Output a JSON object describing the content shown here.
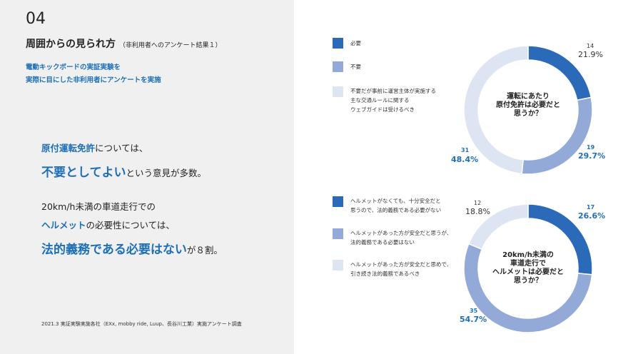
{
  "slide": {
    "number": "04",
    "title": "周囲からの見られ方",
    "title_sub": "（非利用者へのアンケート結果１）",
    "desc_line1": "電動キックボードの実証実験を",
    "desc_line2": "実際に目にした非利用者にアンケートを実施",
    "msg1_a": "原付運転免許",
    "msg1_b": "については、",
    "msg2_a": "不要としてよい",
    "msg2_b": "という意見が多数。",
    "msg3": "20km/h未満の車道走行での",
    "msg4_a": "ヘルメット",
    "msg4_b": "の必要性については、",
    "msg5_a": "法的義務である必要はない",
    "msg5_b": "が８割。",
    "footnote": "2021.3 実証実験実施各社（EXx, mobby ride, Luup、長谷川工業）実施アンケート調査"
  },
  "colors": {
    "dark": "#2a6ab8",
    "mid": "#93a9d8",
    "light": "#dde5f3",
    "accent": "#1e6fb8"
  },
  "chart_data": [
    {
      "type": "pie",
      "donut": true,
      "center_text": [
        "運転にあたり",
        "原付免許は必要だと",
        "思うか？"
      ],
      "legend_position": "left",
      "slices": [
        {
          "label": "必要",
          "count": "14",
          "percent": "21.9%",
          "value": 14
        },
        {
          "label": "不要",
          "count": "19",
          "percent": "29.7%",
          "value": 19
        },
        {
          "label": "不要だが事前に運営主体が実施する主な交通ルールに関するウェブガイドは受けるべき",
          "label_lines": [
            "不要だが事前に運営主体が実施する",
            "主な交通ルールに関する",
            "ウェブガイドは受けるべき"
          ],
          "count": "31",
          "percent": "48.4%",
          "value": 31
        }
      ]
    },
    {
      "type": "pie",
      "donut": true,
      "center_text": [
        "20km/h未満の",
        "車道走行で",
        "ヘルメットは必要だと",
        "思うか？"
      ],
      "legend_position": "left",
      "slices": [
        {
          "label": "ヘルメットがなくても、十分安全だと思うので、法的義務である必要がない",
          "label_lines": [
            "ヘルメットがなくても、十分安全だと",
            "思うので、法的義務である必要がない"
          ],
          "count": "17",
          "percent": "26.6%",
          "value": 17
        },
        {
          "label": "ヘルメットがあった方が安全だと思うが、法的義務である必要はない",
          "label_lines": [
            "ヘルメットがあった方が安全だと思うが、",
            "法的義務である必要はない"
          ],
          "count": "35",
          "percent": "54.7%",
          "value": 35
        },
        {
          "label": "ヘルメットがあった方が安全だと思めで、引き続き法的義務であるべき",
          "label_lines": [
            "ヘルメットがあった方が安全だと思めで、",
            "引き続き法的義務であるべき"
          ],
          "count": "12",
          "percent": "18.8%",
          "value": 12
        }
      ]
    }
  ]
}
